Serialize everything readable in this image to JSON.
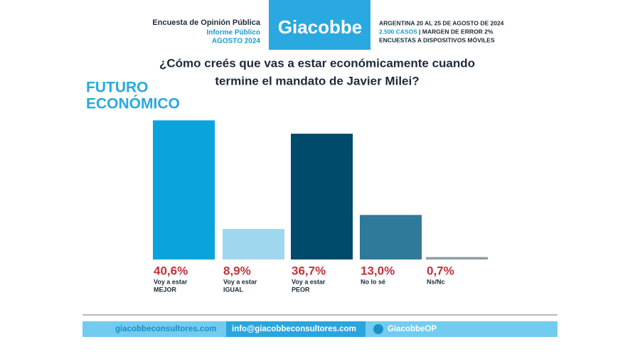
{
  "header": {
    "survey": "Encuesta de Opinión Pública",
    "report": "Informe Público",
    "date": "AGOSTO 2024",
    "brand": "Giacobbe",
    "place": "ARGENTINA 20 AL 25 DE AGOSTO DE 2024",
    "cases": "2.500 CASOS",
    "margin": "| MARGEN DE ERROR 2%",
    "method": "ENCUESTAS A DISPOSITIVOS MÓVILES"
  },
  "chart_data": {
    "type": "bar",
    "title": [
      "¿Cómo creés que vas a estar económicamente cuando",
      "termine el mandato de Javier Milei?"
    ],
    "subtitle": [
      "FUTURO",
      "ECONÓMICO"
    ],
    "categories": [
      [
        "Voy a estar",
        "MEJOR"
      ],
      [
        "Voy a estar",
        "IGUAL"
      ],
      [
        "Voy a estar",
        "PEOR"
      ],
      [
        "No lo sé"
      ],
      [
        "Ns/Nc"
      ]
    ],
    "values": [
      40.6,
      8.9,
      36.7,
      13.0,
      0.7
    ],
    "value_labels": [
      "40,6%",
      "8,9%",
      "36,7%",
      "13,0%",
      "0,7%"
    ],
    "colors": [
      "#0ba3dc",
      "#9fd7ee",
      "#004a6b",
      "#2f799b",
      "#8e9ba1"
    ],
    "label_color": "#c2323c"
  },
  "footer": {
    "web": "giacobbeconsultores.com",
    "email": "info@giacobbeconsultores.com",
    "social": "GiacobbeOP"
  }
}
